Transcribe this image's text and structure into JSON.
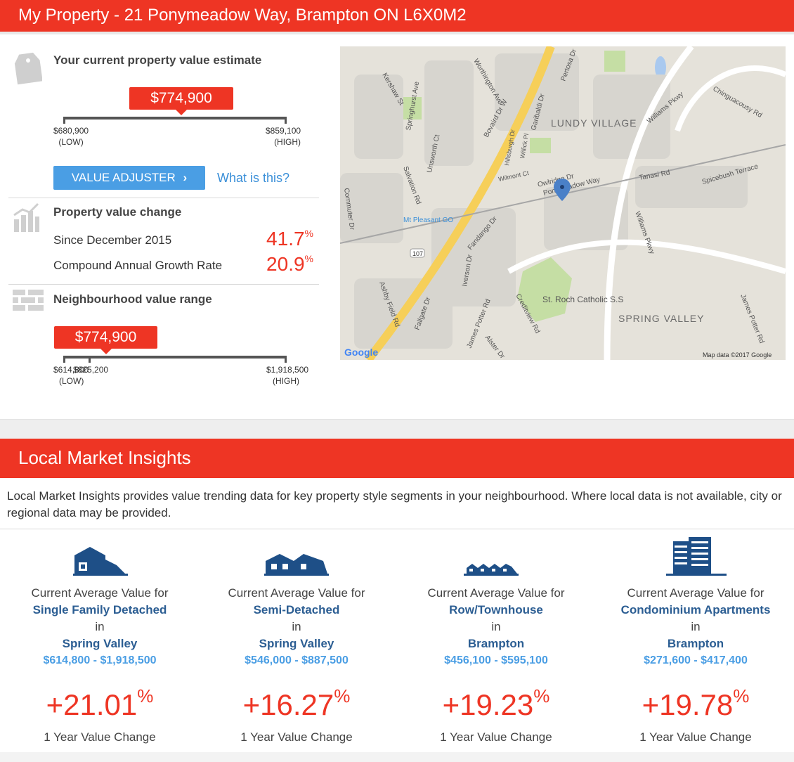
{
  "header": {
    "title": "My Property - 21 Ponymeadow Way, Brampton ON L6X0M2"
  },
  "estimate": {
    "title": "Your current property value estimate",
    "value": "$774,900",
    "low": "$680,900",
    "low_label": "(LOW)",
    "high": "$859,100",
    "high_label": "(HIGH)",
    "adjuster_label": "VALUE ADJUSTER",
    "what_is_this": "What is this?"
  },
  "change": {
    "title": "Property value change",
    "rows": [
      {
        "label": "Since December 2015",
        "value": "41.7",
        "unit": "%"
      },
      {
        "label": "Compound Annual Growth Rate",
        "value": "20.9",
        "unit": "%"
      }
    ]
  },
  "neighbourhood": {
    "title": "Neighbourhood value range",
    "value": "$774,900",
    "low": "$614,800",
    "mid": "$825,200",
    "low_label": "(LOW)",
    "high": "$1,918,500",
    "high_label": "(HIGH)"
  },
  "map": {
    "labels": {
      "lundy": "LUNDY VILLAGE",
      "spring": "SPRING VALLEY",
      "bovaird": "Bovaird Dr W",
      "williams": "Williams Pkwy",
      "williams2": "Williams Pkwy",
      "chinguacousy": "Chinguacousy Rd",
      "ponymeadow": "Ponymeadow Way",
      "owlridge": "Owlridge Dr",
      "mtpleasant": "Mt Pleasant GO",
      "stroch": "St. Roch Catholic S.S",
      "kershaw": "Kershaw St",
      "springhurst": "Springhurst Ave",
      "worthington": "Worthington Ave",
      "unsworth": "Unsworth Ct",
      "salvation": "Salvation Rd",
      "hillsburgh": "Hillsburgh Dr",
      "willick": "Willick Pl",
      "garibaldi": "Garibaldi Dr",
      "pertosa": "Pertosa Dr",
      "wilmont": "Wilmont Ct",
      "tanasi": "Tanasi Rd",
      "spicebush": "Spicebush Terrace",
      "commuter": "Commuter Dr",
      "fandango": "Fandango Dr",
      "iverson": "Iverson Dr",
      "ashby": "Ashby Field Rd",
      "fallgate": "Fallgate Dr",
      "jamespotter": "James Potter Rd",
      "jamespotter2": "James Potter Rd",
      "alster": "Alster Dr",
      "creditview": "Creditview Rd",
      "route": "107",
      "google": "Google",
      "mapdata": "Map data ©2017 Google"
    }
  },
  "insights": {
    "title": "Local Market Insights",
    "intro": "Local Market Insights provides value trending data for key property style segments in your neighbourhood. Where local data is not available, city or regional data may be provided.",
    "cols": [
      {
        "line1": "Current Average Value for",
        "segment": "Single Family Detached",
        "in": "in",
        "area": "Spring Valley",
        "range": "$614,800 - $1,918,500",
        "pct": "+21.01",
        "unit": "%",
        "change": "1 Year Value Change"
      },
      {
        "line1": "Current Average Value for",
        "segment": "Semi-Detached",
        "in": "in",
        "area": "Spring Valley",
        "range": "$546,000 - $887,500",
        "pct": "+16.27",
        "unit": "%",
        "change": "1 Year Value Change"
      },
      {
        "line1": "Current Average Value for",
        "segment": "Row/Townhouse",
        "in": "in",
        "area": "Brampton",
        "range": "$456,100 - $595,100",
        "pct": "+19.23",
        "unit": "%",
        "change": "1 Year Value Change"
      },
      {
        "line1": "Current Average Value for",
        "segment": "Condominium Apartments",
        "in": "in",
        "area": "Brampton",
        "range": "$271,600 - $417,400",
        "pct": "+19.78",
        "unit": "%",
        "change": "1 Year Value Change"
      }
    ]
  },
  "icons": {
    "tag": "price-tag-icon",
    "chart": "bar-chart-icon",
    "brick": "brick-wall-icon",
    "chevron": "chevron-right-icon",
    "house": "detached-house-icon",
    "semi": "semi-detached-icon",
    "row": "townhouse-icon",
    "condo": "condo-building-icon",
    "pin": "map-pin-icon"
  },
  "colors": {
    "brand_red": "#ee3524",
    "link_blue": "#3a8fd8",
    "segment_blue": "#2c5e93",
    "button_blue": "#4a9ee4"
  }
}
